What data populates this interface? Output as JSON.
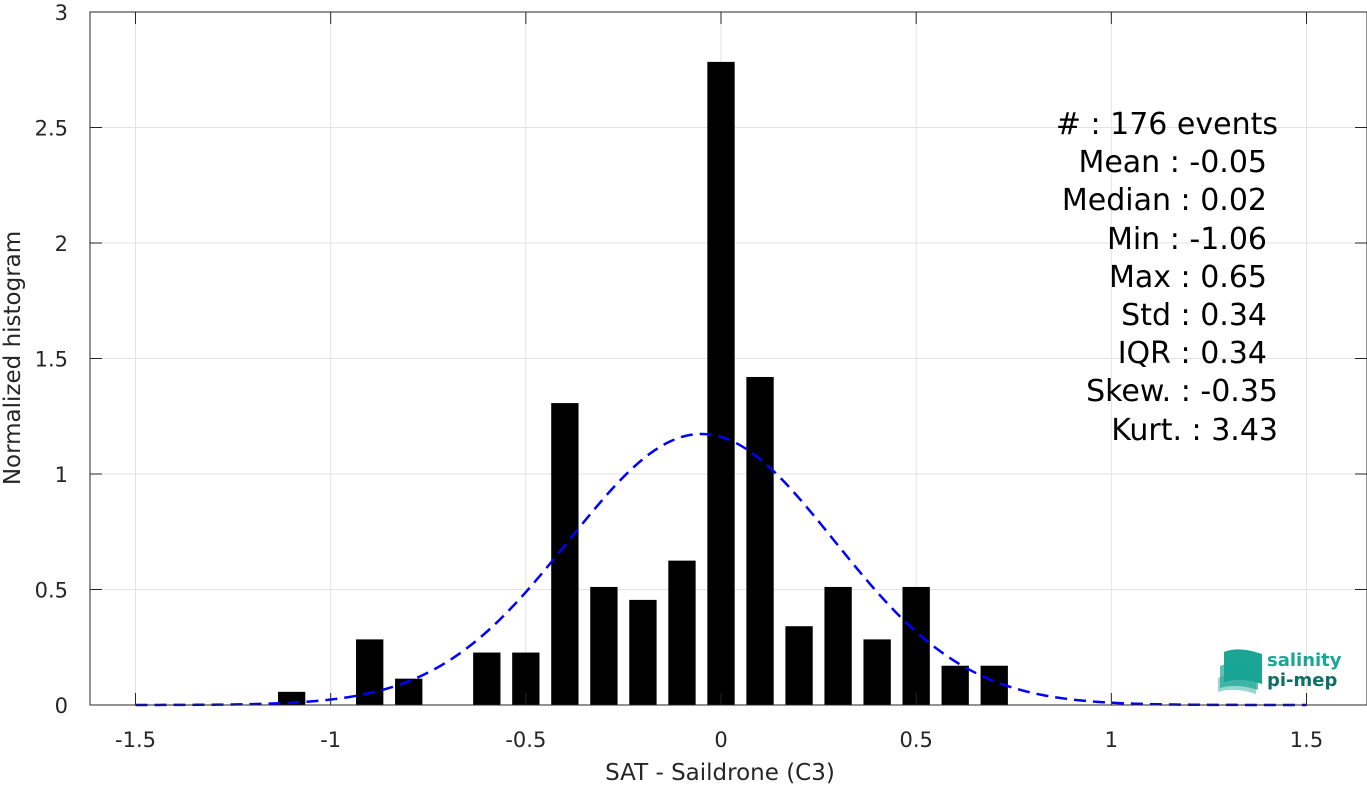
{
  "chart_data": {
    "type": "bar",
    "xlabel": "SAT - Saildrone (C3)",
    "ylabel": "Normalized histogram",
    "xlim": [
      -1.5,
      1.5
    ],
    "ylim": [
      0,
      3
    ],
    "xticks": [
      "-1.5",
      "-1",
      "-0.5",
      "0",
      "0.5",
      "1",
      "1.5"
    ],
    "yticks": [
      "0",
      "0.5",
      "1",
      "1.5",
      "2",
      "2.5",
      "3"
    ],
    "grid": true,
    "bar_width": 0.07,
    "bar_color": "#000000",
    "bars": [
      {
        "x": -1.1,
        "y": 0.057
      },
      {
        "x": -0.9,
        "y": 0.284
      },
      {
        "x": -0.8,
        "y": 0.114
      },
      {
        "x": -0.6,
        "y": 0.227
      },
      {
        "x": -0.5,
        "y": 0.227
      },
      {
        "x": -0.4,
        "y": 1.307
      },
      {
        "x": -0.3,
        "y": 0.511
      },
      {
        "x": -0.2,
        "y": 0.455
      },
      {
        "x": -0.1,
        "y": 0.625
      },
      {
        "x": 0.0,
        "y": 2.784
      },
      {
        "x": 0.1,
        "y": 1.42
      },
      {
        "x": 0.2,
        "y": 0.341
      },
      {
        "x": 0.3,
        "y": 0.511
      },
      {
        "x": 0.4,
        "y": 0.284
      },
      {
        "x": 0.5,
        "y": 0.511
      },
      {
        "x": 0.6,
        "y": 0.17
      },
      {
        "x": 0.7,
        "y": 0.17
      }
    ],
    "fit": {
      "type": "normal",
      "style": "dashed",
      "color": "#0000ff",
      "mean": -0.05,
      "std": 0.34
    },
    "stats": [
      "#  : 176 events",
      "Mean : -0.05",
      "Median : 0.02",
      "Min : -1.06",
      "Max : 0.65",
      "Std : 0.34",
      "IQR : 0.34",
      "Skew. : -0.35",
      "Kurt. : 3.43"
    ]
  },
  "logo": {
    "line1": "salinity",
    "line2": "pi-mep",
    "color": "#1aa595",
    "dark_color": "#0f6e66"
  }
}
